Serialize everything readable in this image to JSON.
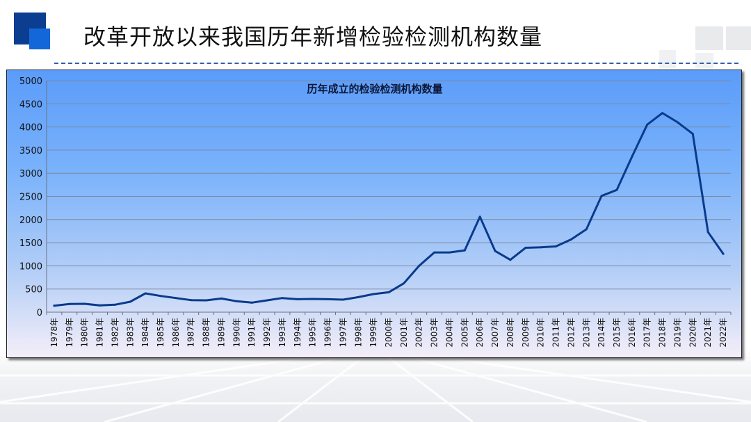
{
  "page": {
    "title": "改革开放以来我国历年新增检验检测机构数量"
  },
  "colors": {
    "accent_dark": "#003a8c",
    "accent_light": "#1565d8",
    "line": "#0a3a8c",
    "gridline": "#7d8aa0"
  },
  "chart_data": {
    "type": "line",
    "title": "历年成立的检验检测机构数量",
    "xlabel": "",
    "ylabel": "",
    "ylim": [
      0,
      5000
    ],
    "yticks": [
      0,
      500,
      1000,
      1500,
      2000,
      2500,
      3000,
      3500,
      4000,
      4500,
      5000
    ],
    "grid": true,
    "legend": "none",
    "categories": [
      "1978年",
      "1979年",
      "1980年",
      "1981年",
      "1982年",
      "1983年",
      "1984年",
      "1985年",
      "1986年",
      "1987年",
      "1988年",
      "1989年",
      "1990年",
      "1991年",
      "1992年",
      "1993年",
      "1994年",
      "1995年",
      "1996年",
      "1997年",
      "1998年",
      "1999年",
      "2000年",
      "2001年",
      "2002年",
      "2003年",
      "2004年",
      "2005年",
      "2006年",
      "2007年",
      "2008年",
      "2009年",
      "2010年",
      "2011年",
      "2012年",
      "2013年",
      "2014年",
      "2015年",
      "2016年",
      "2017年",
      "2018年",
      "2019年",
      "2020年",
      "2021年",
      "2022年"
    ],
    "values": [
      140,
      175,
      180,
      145,
      160,
      225,
      405,
      350,
      305,
      260,
      255,
      295,
      235,
      205,
      255,
      305,
      280,
      285,
      280,
      270,
      325,
      390,
      430,
      625,
      1000,
      1290,
      1290,
      1335,
      2060,
      1320,
      1130,
      1390,
      1400,
      1420,
      1570,
      1790,
      2510,
      2640,
      3360,
      4050,
      4300,
      4100,
      3850,
      1730,
      1260
    ]
  }
}
